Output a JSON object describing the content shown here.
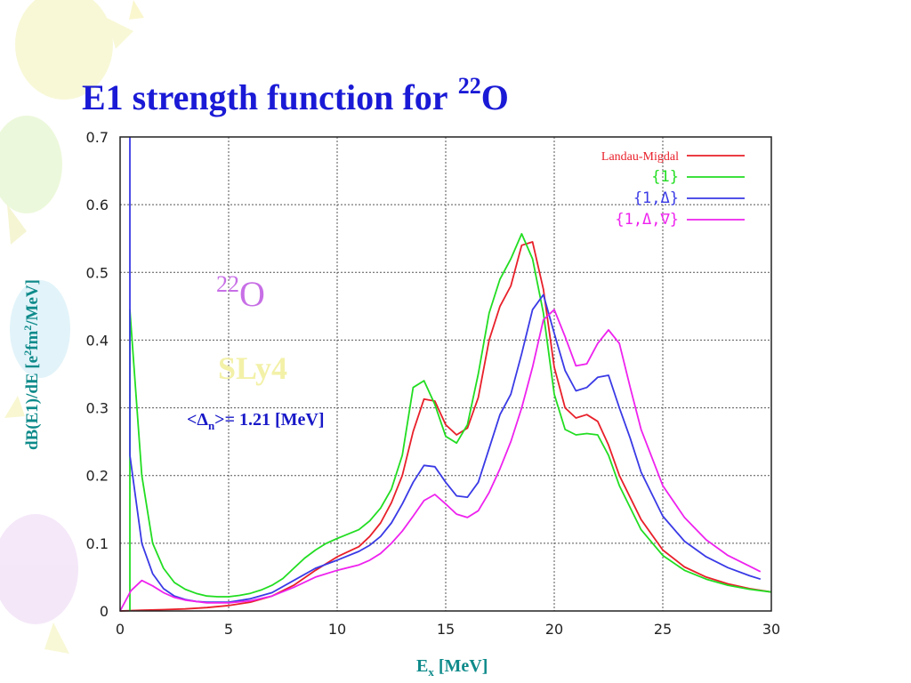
{
  "slide": {
    "title": "E1 strength function for",
    "title_sup": "22",
    "title_element": "O"
  },
  "annotations": {
    "nucleus_mass": "22",
    "nucleus_symbol": "O",
    "force": "SLy4",
    "gap_open": "<Δ",
    "gap_sub": "n",
    "gap_rest": ">= 1.21 [MeV]"
  },
  "colors": {
    "title": "#1a1ad6",
    "axis_label": "#0e8a8a",
    "landau_migdal": "#e8202a",
    "one": "#22dd22",
    "one_delta": "#3a3ae6",
    "one_delta_nabla": "#ee22ee"
  },
  "chart_data": {
    "type": "line",
    "title": "",
    "xlabel_main": "E",
    "xlabel_sub": "x",
    "xlabel_unit": " [MeV]",
    "ylabel_main": "dB(E1)/dE [e",
    "ylabel_sup": "2",
    "ylabel_mid": "fm",
    "ylabel_sup2": "2",
    "ylabel_end": "/MeV]",
    "xlim": [
      0,
      30
    ],
    "ylim": [
      0,
      0.7
    ],
    "xticks": [
      0,
      5,
      10,
      15,
      20,
      25,
      30
    ],
    "yticks": [
      0,
      0.1,
      0.2,
      0.3,
      0.4,
      0.5,
      0.6,
      0.7
    ],
    "ytick_labels": [
      "0",
      "0.1",
      "0.2",
      "0.3",
      "0.4",
      "0.5",
      "0.6",
      "0.7"
    ],
    "grid": true,
    "legend_position": "top-right",
    "series": [
      {
        "name": "Landau-Migdal",
        "color": "#e8202a",
        "points": [
          [
            0.0,
            0.0
          ],
          [
            1.0,
            0.001
          ],
          [
            2.0,
            0.002
          ],
          [
            3.0,
            0.003
          ],
          [
            4.0,
            0.005
          ],
          [
            5.0,
            0.008
          ],
          [
            6.0,
            0.013
          ],
          [
            7.0,
            0.022
          ],
          [
            8.0,
            0.038
          ],
          [
            9.0,
            0.06
          ],
          [
            10.0,
            0.08
          ],
          [
            11.0,
            0.095
          ],
          [
            11.5,
            0.11
          ],
          [
            12.0,
            0.13
          ],
          [
            12.5,
            0.16
          ],
          [
            13.0,
            0.2
          ],
          [
            13.5,
            0.265
          ],
          [
            14.0,
            0.313
          ],
          [
            14.5,
            0.31
          ],
          [
            15.0,
            0.275
          ],
          [
            15.5,
            0.26
          ],
          [
            16.0,
            0.27
          ],
          [
            16.5,
            0.315
          ],
          [
            17.0,
            0.4
          ],
          [
            17.5,
            0.45
          ],
          [
            18.0,
            0.48
          ],
          [
            18.5,
            0.54
          ],
          [
            19.0,
            0.545
          ],
          [
            19.5,
            0.475
          ],
          [
            20.0,
            0.36
          ],
          [
            20.5,
            0.3
          ],
          [
            21.0,
            0.285
          ],
          [
            21.5,
            0.29
          ],
          [
            22.0,
            0.28
          ],
          [
            22.5,
            0.245
          ],
          [
            23.0,
            0.2
          ],
          [
            24.0,
            0.135
          ],
          [
            25.0,
            0.09
          ],
          [
            26.0,
            0.065
          ],
          [
            27.0,
            0.05
          ],
          [
            28.0,
            0.04
          ],
          [
            29.0,
            0.033
          ],
          [
            30.0,
            0.028
          ]
        ]
      },
      {
        "name": "{1}",
        "color": "#22dd22",
        "points": [
          [
            0.45,
            0.0
          ],
          [
            0.45,
            0.445
          ],
          [
            1.0,
            0.2
          ],
          [
            1.5,
            0.1
          ],
          [
            2.0,
            0.063
          ],
          [
            2.5,
            0.042
          ],
          [
            3.0,
            0.032
          ],
          [
            3.5,
            0.026
          ],
          [
            4.0,
            0.022
          ],
          [
            4.5,
            0.021
          ],
          [
            5.0,
            0.021
          ],
          [
            5.5,
            0.023
          ],
          [
            6.0,
            0.026
          ],
          [
            6.5,
            0.031
          ],
          [
            7.0,
            0.038
          ],
          [
            7.5,
            0.048
          ],
          [
            8.0,
            0.063
          ],
          [
            8.5,
            0.078
          ],
          [
            9.0,
            0.09
          ],
          [
            9.5,
            0.1
          ],
          [
            10.0,
            0.107
          ],
          [
            11.0,
            0.12
          ],
          [
            11.5,
            0.133
          ],
          [
            12.0,
            0.152
          ],
          [
            12.5,
            0.18
          ],
          [
            13.0,
            0.23
          ],
          [
            13.5,
            0.33
          ],
          [
            14.0,
            0.34
          ],
          [
            14.5,
            0.305
          ],
          [
            15.0,
            0.258
          ],
          [
            15.5,
            0.248
          ],
          [
            16.0,
            0.275
          ],
          [
            16.5,
            0.35
          ],
          [
            17.0,
            0.44
          ],
          [
            17.5,
            0.49
          ],
          [
            18.0,
            0.52
          ],
          [
            18.5,
            0.557
          ],
          [
            19.0,
            0.52
          ],
          [
            19.5,
            0.44
          ],
          [
            20.0,
            0.32
          ],
          [
            20.5,
            0.268
          ],
          [
            21.0,
            0.26
          ],
          [
            21.5,
            0.262
          ],
          [
            22.0,
            0.26
          ],
          [
            22.5,
            0.23
          ],
          [
            23.0,
            0.185
          ],
          [
            24.0,
            0.12
          ],
          [
            25.0,
            0.082
          ],
          [
            26.0,
            0.06
          ],
          [
            27.0,
            0.047
          ],
          [
            28.0,
            0.038
          ],
          [
            29.0,
            0.032
          ],
          [
            30.0,
            0.028
          ]
        ]
      },
      {
        "name": "{1,Δ}",
        "color": "#3a3ae6",
        "points": [
          [
            0.45,
            0.7
          ],
          [
            0.45,
            0.23
          ],
          [
            1.0,
            0.1
          ],
          [
            1.5,
            0.055
          ],
          [
            2.0,
            0.033
          ],
          [
            2.5,
            0.022
          ],
          [
            3.0,
            0.017
          ],
          [
            3.5,
            0.014
          ],
          [
            4.0,
            0.013
          ],
          [
            5.0,
            0.013
          ],
          [
            6.0,
            0.018
          ],
          [
            7.0,
            0.027
          ],
          [
            8.0,
            0.045
          ],
          [
            9.0,
            0.063
          ],
          [
            10.0,
            0.075
          ],
          [
            11.0,
            0.088
          ],
          [
            11.5,
            0.097
          ],
          [
            12.0,
            0.11
          ],
          [
            12.5,
            0.13
          ],
          [
            13.0,
            0.158
          ],
          [
            13.5,
            0.19
          ],
          [
            14.0,
            0.215
          ],
          [
            14.5,
            0.213
          ],
          [
            15.0,
            0.19
          ],
          [
            15.5,
            0.17
          ],
          [
            16.0,
            0.168
          ],
          [
            16.5,
            0.19
          ],
          [
            17.0,
            0.24
          ],
          [
            17.5,
            0.29
          ],
          [
            18.0,
            0.32
          ],
          [
            18.5,
            0.38
          ],
          [
            19.0,
            0.445
          ],
          [
            19.5,
            0.467
          ],
          [
            20.0,
            0.41
          ],
          [
            20.5,
            0.355
          ],
          [
            21.0,
            0.325
          ],
          [
            21.5,
            0.33
          ],
          [
            22.0,
            0.345
          ],
          [
            22.5,
            0.348
          ],
          [
            23.0,
            0.3
          ],
          [
            23.5,
            0.255
          ],
          [
            24.0,
            0.205
          ],
          [
            25.0,
            0.14
          ],
          [
            26.0,
            0.103
          ],
          [
            27.0,
            0.08
          ],
          [
            28.0,
            0.064
          ],
          [
            29.0,
            0.052
          ],
          [
            29.5,
            0.047
          ]
        ]
      },
      {
        "name": "{1,Δ,∇}",
        "color": "#ee22ee",
        "points": [
          [
            0.0,
            0.0
          ],
          [
            0.5,
            0.03
          ],
          [
            1.0,
            0.045
          ],
          [
            1.5,
            0.037
          ],
          [
            2.0,
            0.027
          ],
          [
            2.5,
            0.02
          ],
          [
            3.0,
            0.016
          ],
          [
            4.0,
            0.012
          ],
          [
            5.0,
            0.012
          ],
          [
            6.0,
            0.015
          ],
          [
            7.0,
            0.022
          ],
          [
            8.0,
            0.035
          ],
          [
            9.0,
            0.05
          ],
          [
            10.0,
            0.06
          ],
          [
            11.0,
            0.068
          ],
          [
            11.5,
            0.075
          ],
          [
            12.0,
            0.085
          ],
          [
            12.5,
            0.1
          ],
          [
            13.0,
            0.118
          ],
          [
            13.5,
            0.14
          ],
          [
            14.0,
            0.163
          ],
          [
            14.5,
            0.172
          ],
          [
            15.0,
            0.158
          ],
          [
            15.5,
            0.143
          ],
          [
            16.0,
            0.138
          ],
          [
            16.5,
            0.148
          ],
          [
            17.0,
            0.175
          ],
          [
            17.5,
            0.21
          ],
          [
            18.0,
            0.25
          ],
          [
            18.5,
            0.3
          ],
          [
            19.0,
            0.36
          ],
          [
            19.5,
            0.43
          ],
          [
            20.0,
            0.445
          ],
          [
            20.5,
            0.405
          ],
          [
            21.0,
            0.362
          ],
          [
            21.5,
            0.365
          ],
          [
            22.0,
            0.395
          ],
          [
            22.5,
            0.415
          ],
          [
            23.0,
            0.395
          ],
          [
            23.5,
            0.33
          ],
          [
            24.0,
            0.268
          ],
          [
            25.0,
            0.185
          ],
          [
            26.0,
            0.138
          ],
          [
            27.0,
            0.105
          ],
          [
            28.0,
            0.082
          ],
          [
            29.0,
            0.066
          ],
          [
            29.5,
            0.058
          ]
        ]
      }
    ]
  }
}
